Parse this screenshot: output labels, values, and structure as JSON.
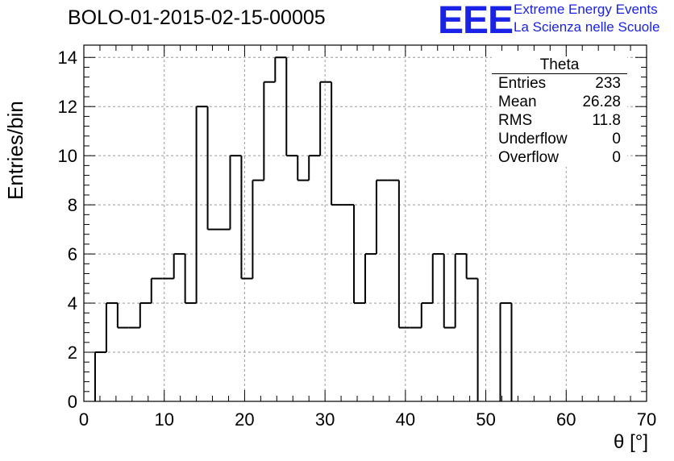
{
  "title": "BOLO-01-2015-02-15-00005",
  "logo": {
    "mark": "EEE",
    "line1": "Extreme Energy Events",
    "line2": "La Scienza nelle Scuole"
  },
  "stats": {
    "name": "Theta",
    "rows": [
      {
        "label": "Entries",
        "value": "233"
      },
      {
        "label": "Mean",
        "value": "26.28"
      },
      {
        "label": "RMS",
        "value": "11.8"
      },
      {
        "label": "Underflow",
        "value": "0"
      },
      {
        "label": "Overflow",
        "value": "0"
      }
    ]
  },
  "chart_data": {
    "type": "bar",
    "title": "BOLO-01-2015-02-15-00005",
    "xlabel": "θ [°]",
    "ylabel": "Entries/bin",
    "xlim": [
      0,
      70
    ],
    "ylim": [
      0,
      14.5
    ],
    "xticks": [
      0,
      10,
      20,
      30,
      40,
      50,
      60,
      70
    ],
    "yticks": [
      0,
      2,
      4,
      6,
      8,
      10,
      12,
      14
    ],
    "bin_width": 1.4,
    "bin_start": 0,
    "values": [
      0,
      2,
      4,
      3,
      3,
      4,
      5,
      5,
      6,
      4,
      12,
      7,
      7,
      10,
      5,
      9,
      13,
      14,
      10,
      9,
      10,
      13,
      8,
      8,
      4,
      6,
      9,
      9,
      3,
      3,
      4,
      6,
      3,
      6,
      5,
      0,
      0,
      4,
      0,
      0,
      0,
      0,
      0,
      0,
      0,
      0,
      0,
      0,
      0,
      0
    ],
    "grid": true,
    "legend": "top-right",
    "line_color": "#000000"
  }
}
